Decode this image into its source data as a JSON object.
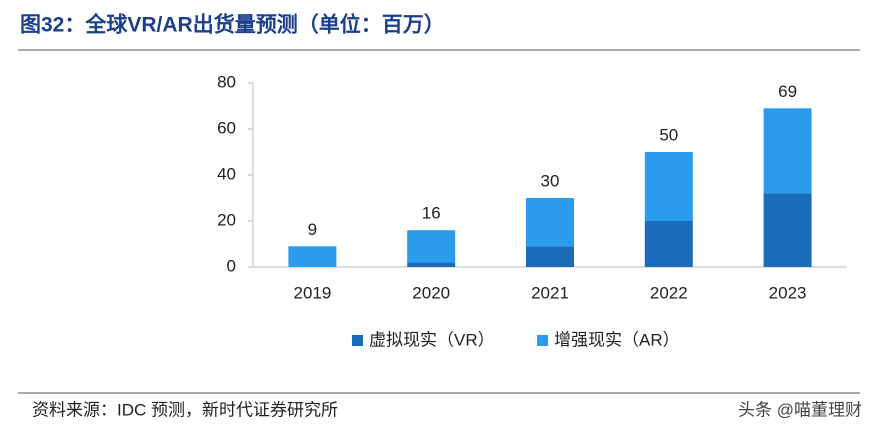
{
  "title": "图32：全球VR/AR出货量预测（单位：百万）",
  "chart_data": {
    "type": "stacked-bar",
    "categories": [
      "2019",
      "2020",
      "2021",
      "2022",
      "2023"
    ],
    "series": [
      {
        "name": "虚拟现实（VR）",
        "color": "#1a6cb8",
        "values": [
          0,
          2,
          9,
          20,
          32
        ]
      },
      {
        "name": "增强现实（AR）",
        "color": "#2b9ced",
        "values": [
          9,
          14,
          21,
          30,
          37
        ]
      }
    ],
    "totals": [
      9,
      16,
      30,
      50,
      69
    ],
    "ylim": [
      0,
      80
    ],
    "yticks": [
      0,
      20,
      40,
      60,
      80
    ],
    "grid": false,
    "legend": "bottom"
  },
  "source": "资料来源：IDC 预测，新时代证券研究所",
  "watermark": "头条 @喵董理财"
}
